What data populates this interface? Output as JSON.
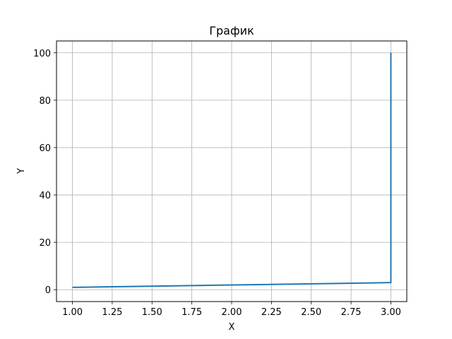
{
  "chart_data": {
    "type": "line",
    "title": "График",
    "xlabel": "X",
    "ylabel": "Y",
    "grid": true,
    "xlim": [
      0.9,
      3.1
    ],
    "ylim": [
      -5,
      105
    ],
    "x_ticks": [
      "1.00",
      "1.25",
      "1.50",
      "1.75",
      "2.00",
      "2.25",
      "2.50",
      "2.75",
      "3.00"
    ],
    "y_ticks": [
      "0",
      "20",
      "40",
      "60",
      "80",
      "100"
    ],
    "series": [
      {
        "x": [
          1,
          2,
          3,
          3
        ],
        "y": [
          1,
          2,
          3,
          100
        ],
        "color": "#1f77b4"
      }
    ]
  }
}
